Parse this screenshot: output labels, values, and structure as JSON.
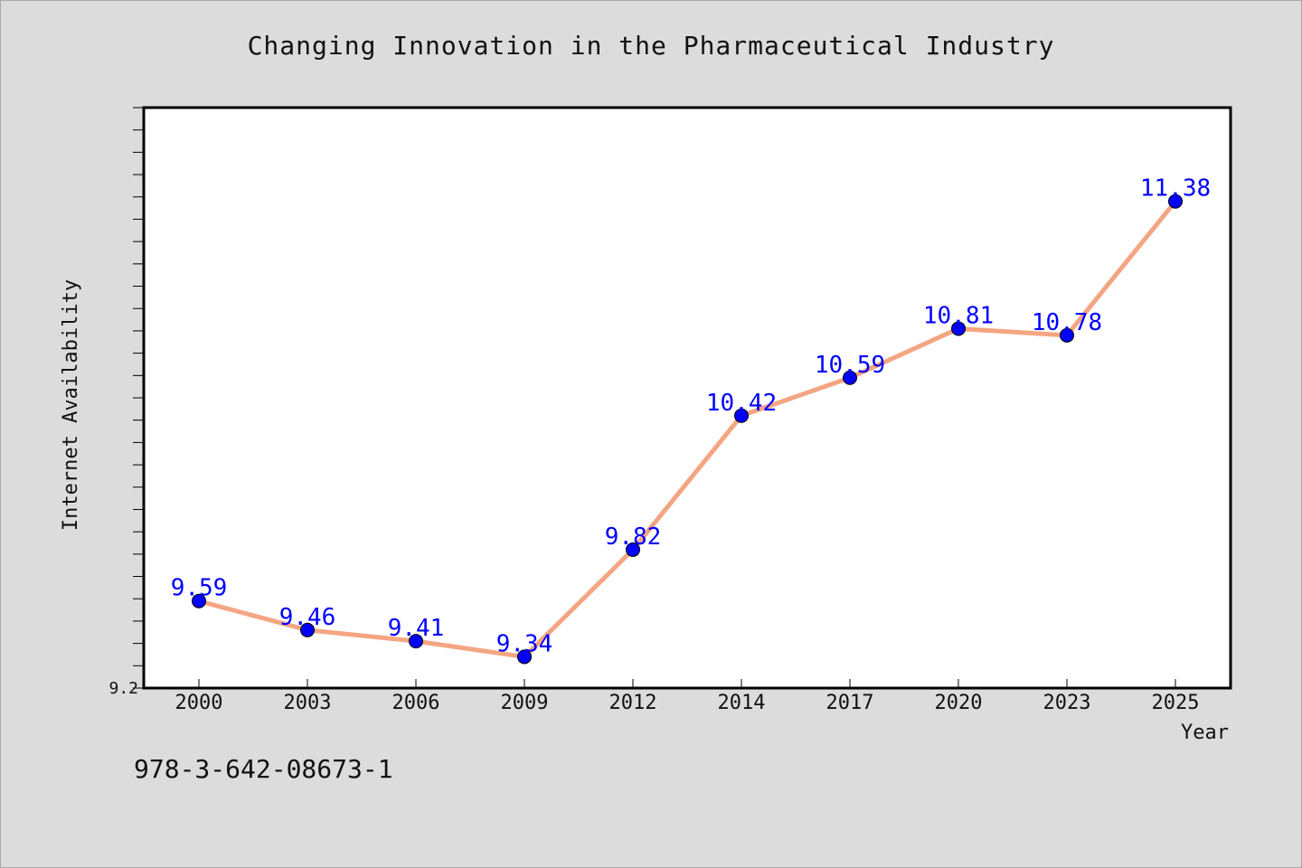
{
  "chart_data": {
    "type": "line",
    "title": "Changing Innovation in the Pharmaceutical Industry",
    "xlabel": "Year",
    "ylabel": "Internet Availability",
    "categories": [
      "2000",
      "2003",
      "2006",
      "2009",
      "2012",
      "2014",
      "2017",
      "2020",
      "2023",
      "2025"
    ],
    "series": [
      {
        "values": [
          9.59,
          9.46,
          9.41,
          9.34,
          9.82,
          10.42,
          10.59,
          10.81,
          10.78,
          11.38
        ],
        "data_labels": [
          "9.59",
          "9.46",
          "9.41",
          "9.34",
          "9.82",
          "10.42",
          "10.59",
          "10.81",
          "10.78",
          "11.38"
        ],
        "line_color": "#f4a582",
        "marker_color": "#0000ff"
      }
    ],
    "ylim": [
      9.2,
      11.8
    ],
    "y_tick_labels": [
      "9.2"
    ],
    "y_minor_tick_step": 0.1,
    "grid": false,
    "background": "#ffffff",
    "page_background": "#dcdcdc"
  },
  "footer": {
    "isbn": "978-3-642-08673-1"
  }
}
